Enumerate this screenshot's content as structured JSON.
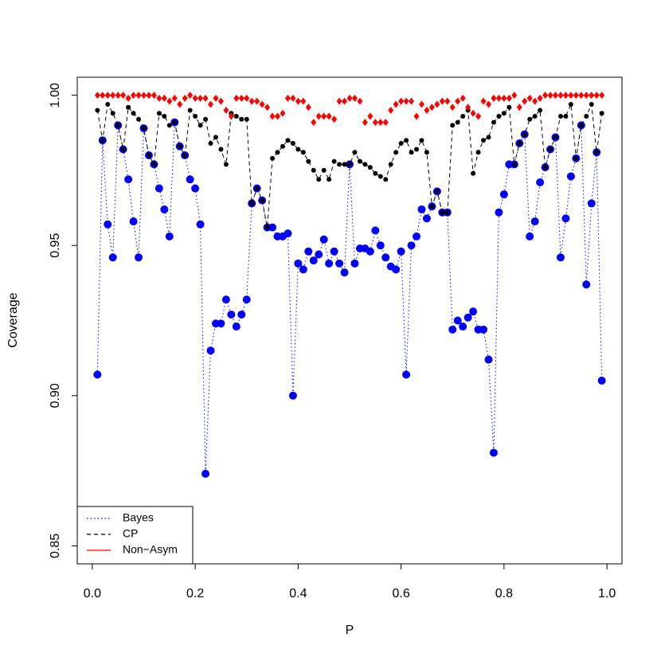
{
  "chart_data": {
    "type": "line",
    "xlabel": "P",
    "ylabel": "Coverage",
    "x": [
      0.01,
      0.02,
      0.03,
      0.04,
      0.05,
      0.06,
      0.07,
      0.08,
      0.09,
      0.1,
      0.11,
      0.12,
      0.13,
      0.14,
      0.15,
      0.16,
      0.17,
      0.18,
      0.19,
      0.2,
      0.21,
      0.22,
      0.23,
      0.24,
      0.25,
      0.26,
      0.27,
      0.28,
      0.29,
      0.3,
      0.31,
      0.32,
      0.33,
      0.34,
      0.35,
      0.36,
      0.37,
      0.38,
      0.39,
      0.4,
      0.41,
      0.42,
      0.43,
      0.44,
      0.45,
      0.46,
      0.47,
      0.48,
      0.49,
      0.5,
      0.51,
      0.52,
      0.53,
      0.54,
      0.55,
      0.56,
      0.57,
      0.58,
      0.59,
      0.6,
      0.61,
      0.62,
      0.63,
      0.64,
      0.65,
      0.66,
      0.67,
      0.68,
      0.69,
      0.7,
      0.71,
      0.72,
      0.73,
      0.74,
      0.75,
      0.76,
      0.77,
      0.78,
      0.79,
      0.8,
      0.81,
      0.82,
      0.83,
      0.84,
      0.85,
      0.86,
      0.87,
      0.88,
      0.89,
      0.9,
      0.91,
      0.92,
      0.93,
      0.94,
      0.95,
      0.96,
      0.97,
      0.98,
      0.99
    ],
    "series": [
      {
        "name": "Bayes",
        "color": "#0000ff",
        "line_style": "dotted",
        "marker": "circle",
        "connect": true,
        "values": [
          0.907,
          0.985,
          0.957,
          0.946,
          0.99,
          0.982,
          0.972,
          0.958,
          0.946,
          0.989,
          0.98,
          0.977,
          0.969,
          0.962,
          0.953,
          0.991,
          0.983,
          0.98,
          0.972,
          0.969,
          0.957,
          0.874,
          0.915,
          0.924,
          0.924,
          0.932,
          0.927,
          0.923,
          0.927,
          0.932,
          0.964,
          0.969,
          0.965,
          0.956,
          0.956,
          0.953,
          0.953,
          0.954,
          0.9,
          0.944,
          0.942,
          0.948,
          0.945,
          0.947,
          0.952,
          0.944,
          0.948,
          0.944,
          0.941,
          0.977,
          0.944,
          0.949,
          0.949,
          0.948,
          0.955,
          0.95,
          0.946,
          0.943,
          0.942,
          0.948,
          0.907,
          0.95,
          0.953,
          0.962,
          0.959,
          0.963,
          0.968,
          0.961,
          0.961,
          0.922,
          0.925,
          0.923,
          0.926,
          0.928,
          0.922,
          0.922,
          0.912,
          0.881,
          0.961,
          0.967,
          0.977,
          0.977,
          0.984,
          0.987,
          0.953,
          0.958,
          0.971,
          0.976,
          0.982,
          0.986,
          0.946,
          0.959,
          0.973,
          0.979,
          0.99,
          0.937,
          0.964,
          0.981,
          0.905
        ]
      },
      {
        "name": "CP",
        "color": "#000000",
        "line_style": "dashed",
        "marker": "dot",
        "connect": true,
        "values": [
          0.995,
          0.985,
          0.997,
          0.994,
          0.99,
          0.982,
          0.996,
          0.994,
          0.992,
          0.989,
          0.98,
          0.977,
          0.994,
          0.993,
          0.99,
          0.991,
          0.983,
          0.98,
          0.995,
          0.993,
          0.99,
          0.992,
          0.984,
          0.986,
          0.982,
          0.977,
          0.994,
          0.993,
          0.992,
          0.992,
          0.964,
          0.969,
          0.965,
          0.956,
          0.979,
          0.981,
          0.983,
          0.985,
          0.984,
          0.982,
          0.981,
          0.978,
          0.975,
          0.972,
          0.975,
          0.972,
          0.978,
          0.977,
          0.977,
          0.977,
          0.981,
          0.978,
          0.977,
          0.976,
          0.974,
          0.973,
          0.972,
          0.977,
          0.981,
          0.984,
          0.985,
          0.981,
          0.982,
          0.985,
          0.981,
          0.963,
          0.968,
          0.961,
          0.961,
          0.99,
          0.991,
          0.993,
          0.995,
          0.974,
          0.981,
          0.985,
          0.986,
          0.991,
          0.993,
          0.994,
          0.996,
          0.977,
          0.984,
          0.987,
          0.992,
          0.993,
          0.995,
          0.976,
          0.982,
          0.986,
          0.993,
          0.993,
          0.997,
          0.979,
          0.99,
          0.993,
          0.997,
          0.981,
          0.994
        ]
      },
      {
        "name": "Non−Asym",
        "color": "#ff0000",
        "line_style": "solid",
        "marker": "diamond",
        "connect": false,
        "values": [
          1.0,
          1.0,
          1.0,
          1.0,
          1.0,
          1.0,
          0.999,
          1.0,
          1.0,
          1.0,
          1.0,
          1.0,
          0.999,
          0.999,
          0.998,
          0.999,
          0.997,
          0.999,
          1.0,
          0.999,
          0.999,
          0.999,
          0.997,
          0.999,
          0.998,
          0.995,
          0.993,
          0.999,
          0.999,
          0.999,
          0.998,
          0.998,
          0.997,
          0.996,
          0.993,
          0.993,
          0.994,
          0.999,
          0.999,
          0.998,
          0.998,
          0.996,
          0.991,
          0.993,
          0.993,
          0.993,
          0.992,
          0.998,
          0.998,
          0.999,
          0.999,
          0.998,
          0.991,
          0.993,
          0.991,
          0.991,
          0.991,
          0.995,
          0.997,
          0.998,
          0.998,
          0.998,
          0.993,
          0.997,
          0.995,
          0.996,
          0.997,
          0.998,
          0.998,
          0.996,
          0.998,
          0.999,
          0.996,
          0.994,
          0.993,
          0.998,
          0.997,
          0.999,
          0.999,
          0.999,
          0.999,
          1.0,
          0.996,
          0.998,
          0.999,
          0.998,
          0.999,
          1.0,
          1.0,
          1.0,
          1.0,
          1.0,
          1.0,
          1.0,
          1.0,
          1.0,
          1.0,
          1.0,
          1.0
        ]
      }
    ],
    "xlim": [
      -0.0292,
      1.0292
    ],
    "ylim": [
      0.844,
      1.006
    ],
    "xticks": [
      {
        "value": 0,
        "label": "0.0"
      },
      0.2,
      0.4,
      0.6,
      0.8,
      {
        "value": 1,
        "label": "1.0"
      }
    ],
    "yticks": [
      0.85,
      {
        "value": 0.9,
        "label": "0.90"
      },
      0.95,
      {
        "value": 1,
        "label": "1.00"
      }
    ],
    "legend": "bottom-left"
  }
}
